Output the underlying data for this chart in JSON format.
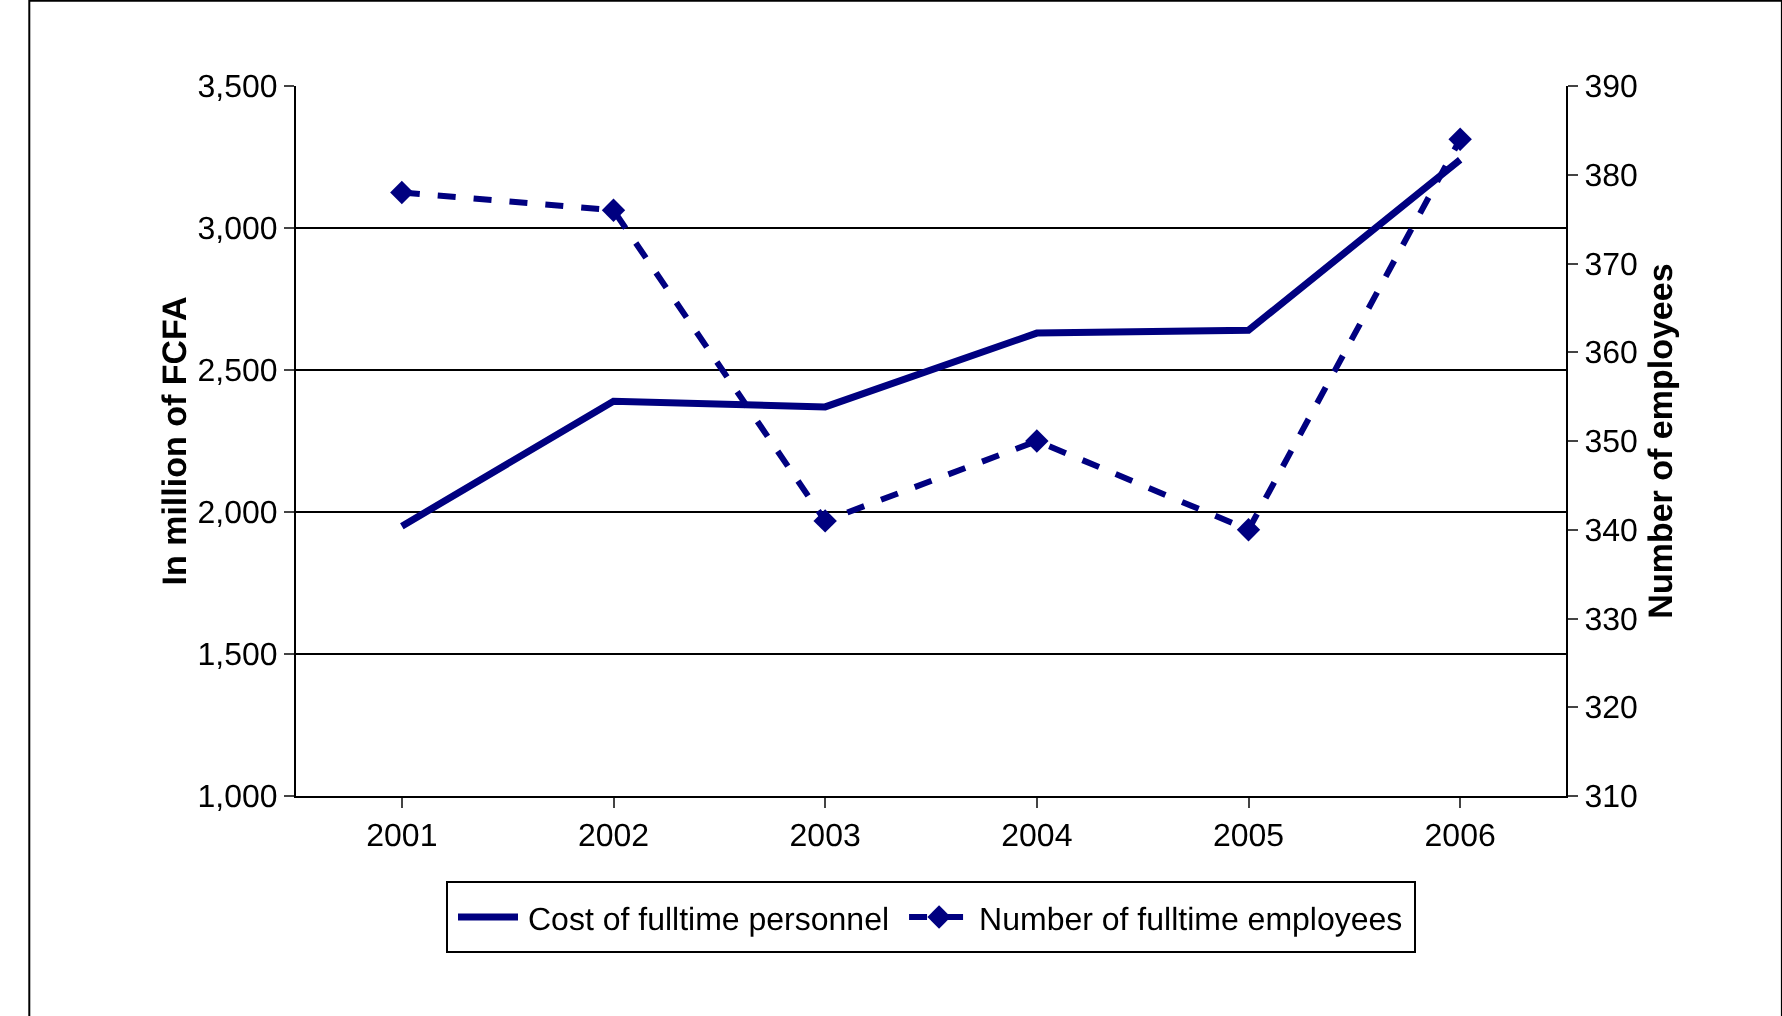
{
  "chart_data": {
    "type": "line",
    "ylabel": "In million of FCFA",
    "y2label": "Number of employees",
    "categories": [
      "2001",
      "2002",
      "2003",
      "2004",
      "2005",
      "2006"
    ],
    "series": [
      {
        "name": "Cost of fulltime personnel",
        "color": "#000080",
        "values": [
          1950,
          2390,
          2370,
          2630,
          2640,
          3240
        ],
        "line_style": "solid",
        "marker": "none"
      },
      {
        "name": "Number of fulltime employees",
        "color": "#000080",
        "values": [
          378,
          376,
          341,
          350,
          340,
          384
        ],
        "axis": "y2",
        "line_style": "dashed",
        "marker": "diamond"
      }
    ],
    "ylim": [
      1000,
      3500
    ],
    "yticks": [
      {
        "value": 1000,
        "label": "1,000"
      },
      {
        "value": 1500,
        "label": "1,500"
      },
      {
        "value": 2000,
        "label": "2,000"
      },
      {
        "value": 2500,
        "label": "2,500"
      },
      {
        "value": 3000,
        "label": "3,000"
      },
      {
        "value": 3500,
        "label": "3,500"
      }
    ],
    "y2lim": [
      310,
      390
    ],
    "y2ticks": [
      310,
      320,
      330,
      340,
      350,
      360,
      370,
      380,
      390
    ],
    "grid": "y",
    "legend": "bottom"
  }
}
